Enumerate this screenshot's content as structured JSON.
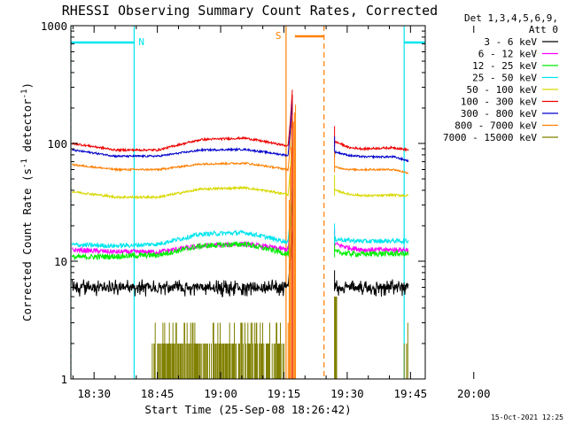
{
  "chart_data": {
    "type": "line",
    "title": "RHESSI Observing Summary Count Rates, Corrected",
    "xlabel": "Start Time (25-Sep-08 18:26:42)",
    "ylabel": "Corrected Count Rate (s",
    "ylabel_sup1": "-1",
    "ylabel_mid": " detector",
    "ylabel_sup2": "-1",
    "ylabel_end": ")",
    "y_scale": "log",
    "ylim": [
      1,
      1000
    ],
    "xlim_min": [
      24.5,
      108.5
    ],
    "x_tick_labels": [
      "18:30",
      "18:45",
      "19:00",
      "19:15",
      "19:30",
      "19:45",
      "20:00"
    ],
    "x_ticks_min": [
      30,
      45,
      60,
      75,
      90,
      105,
      120
    ],
    "y_tick_labels": [
      "1",
      "10",
      "100",
      "1000"
    ],
    "y_ticks": [
      1,
      10,
      100,
      1000
    ],
    "legend_header_1": "Det 1,3,4,5,6,9,",
    "legend_header_2": "Att 0",
    "legend_position": "right",
    "timestamp": "15-Oct-2021 12:25",
    "intervals": [
      {
        "label": "N",
        "start": 24.5,
        "end": 39.5,
        "color": "#00e5ee",
        "kind": "night"
      },
      {
        "label": "",
        "start": 103.5,
        "end": 118.5,
        "color": "#00e5ee",
        "kind": "night"
      },
      {
        "label": "S",
        "start": 75.5,
        "end": 84.5,
        "color": "#ff7f00",
        "kind": "saa"
      }
    ],
    "gap_min": [
      77,
      84.5
    ],
    "series": [
      {
        "name": "3 - 6 keV",
        "color": "#000000",
        "band": "6, 6.3, 6.6, 7, 6.5"
      },
      {
        "name": "6 - 12 keV",
        "color": "#ff00ff"
      },
      {
        "name": "12 - 25 keV",
        "color": "#00ee00"
      },
      {
        "name": "25 - 50 keV",
        "color": "#00e5ee"
      },
      {
        "name": "50 - 100 keV",
        "color": "#d8d800"
      },
      {
        "name": "100 - 300 keV",
        "color": "#ee0000"
      },
      {
        "name": "300 - 800 keV",
        "color": "#0000cd"
      },
      {
        "name": "800 - 7000 keV",
        "color": "#ff7f00"
      },
      {
        "name": "7000 - 15000 keV",
        "color": "#808000"
      }
    ],
    "series_shapes": {
      "3 - 6 keV": {
        "pre": [
          6,
          6.2,
          6.4,
          6.8,
          6.5,
          6.3
        ],
        "post": [
          6.2,
          6,
          6,
          6.1,
          6.2,
          6
        ],
        "noise": 0.12
      },
      "6 - 12 keV": {
        "pre": [
          12.5,
          12,
          12,
          13.5,
          14,
          12.5
        ],
        "post": [
          14,
          13,
          12.5,
          12.5,
          12.5,
          12.5
        ],
        "noise": 0.05
      },
      "12 - 25 keV": {
        "pre": [
          10.8,
          11,
          11.3,
          13.5,
          14,
          11.5
        ],
        "post": [
          12,
          11.6,
          11.5,
          11.6,
          11.6,
          11.5
        ],
        "noise": 0.055
      },
      "25 - 50 keV": {
        "pre": [
          13.8,
          13.5,
          14,
          17,
          17.5,
          14.5
        ],
        "post": [
          15.5,
          15,
          14.8,
          14.8,
          14.9,
          14.8
        ],
        "noise": 0.045
      },
      "50 - 100 keV": {
        "pre": [
          39,
          35,
          35,
          41,
          42,
          37
        ],
        "post": [
          40,
          37,
          36,
          36,
          36.5,
          36
        ],
        "noise": 0.022
      },
      "100 - 300 keV": {
        "pre": [
          100,
          88,
          88,
          108,
          111,
          95
        ],
        "post": [
          104,
          92,
          90,
          91,
          92,
          88
        ],
        "noise": 0.02
      },
      "300 - 800 keV": {
        "pre": [
          88,
          78,
          78,
          88,
          89,
          79
        ],
        "post": [
          85,
          79,
          77,
          77,
          77,
          71
        ],
        "noise": 0.018
      },
      "800 - 7000 keV": {
        "pre": [
          66,
          60,
          60,
          67,
          68,
          60
        ],
        "post": [
          63,
          60,
          60,
          60,
          60,
          56
        ],
        "noise": 0.018
      }
    }
  }
}
